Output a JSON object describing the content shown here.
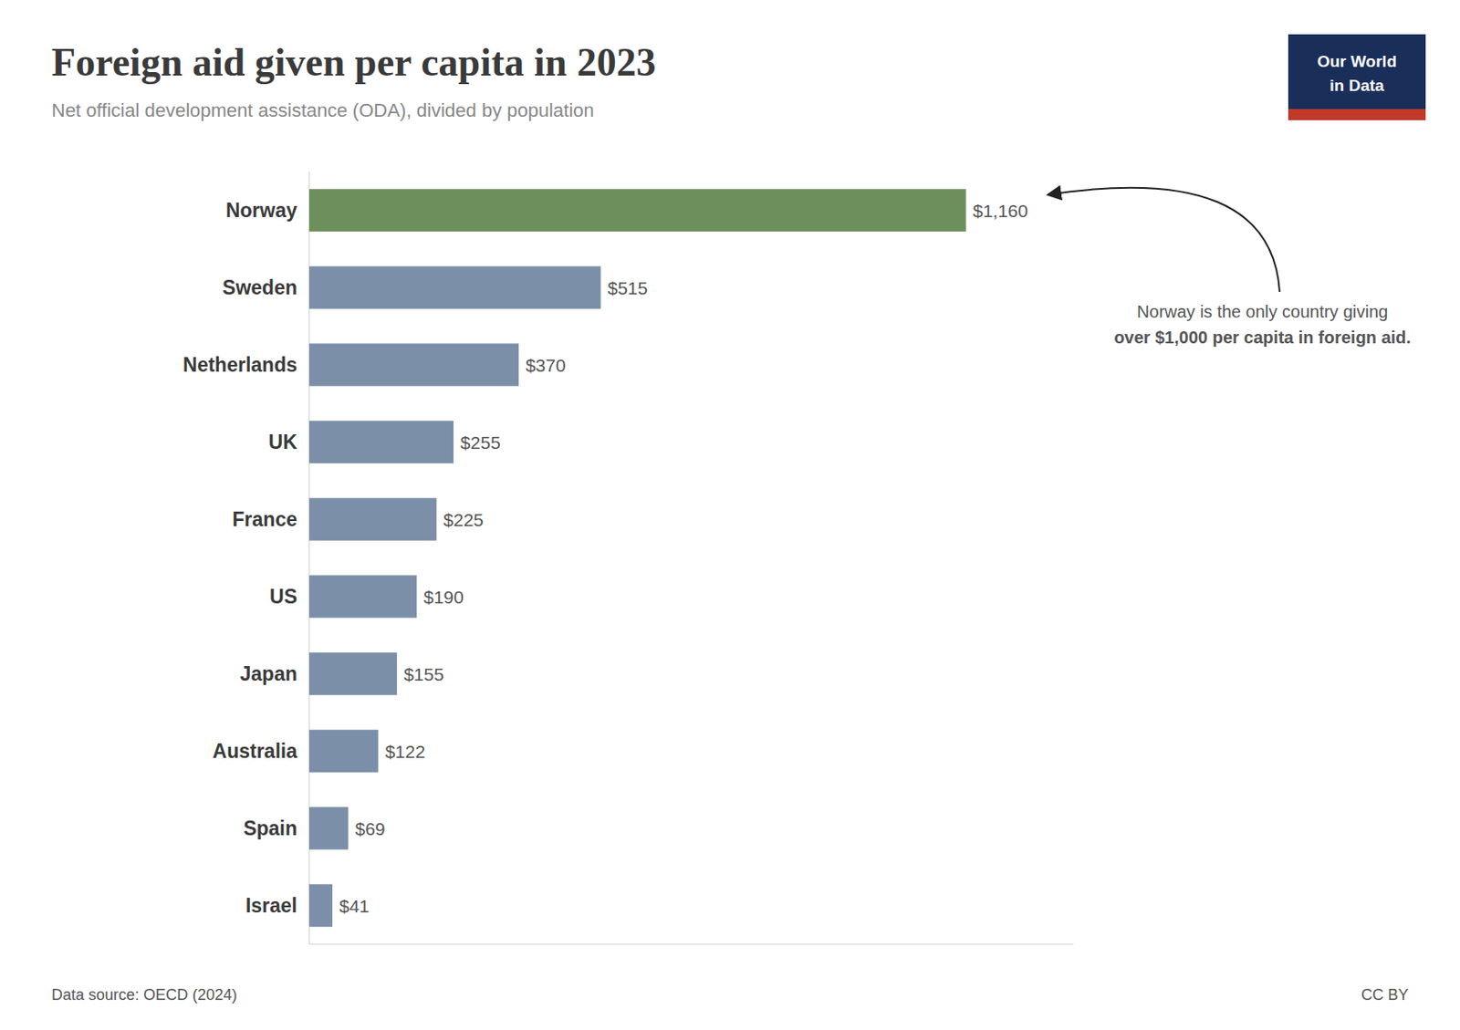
{
  "chart_data": {
    "type": "bar",
    "orientation": "horizontal",
    "title": "Foreign aid given per capita in 2023",
    "subtitle": "Net official development assistance (ODA), divided by population",
    "categories": [
      "Norway",
      "Sweden",
      "Netherlands",
      "UK",
      "France",
      "US",
      "Japan",
      "Australia",
      "Spain",
      "Israel"
    ],
    "values": [
      1160,
      515,
      370,
      255,
      225,
      190,
      155,
      122,
      69,
      41
    ],
    "value_labels": [
      "$1,160",
      "$515",
      "$370",
      "$255",
      "$225",
      "$190",
      "$155",
      "$122",
      "$69",
      "$41"
    ],
    "colors": [
      "#6d8f5c",
      "#7b8fa8",
      "#7b8fa8",
      "#7b8fa8",
      "#7b8fa8",
      "#7b8fa8",
      "#7b8fa8",
      "#7b8fa8",
      "#7b8fa8",
      "#7b8fa8"
    ],
    "xlim": [
      0,
      1350
    ],
    "data_labels": true,
    "tick_labels": "y",
    "grid": false,
    "annotations": [
      "Norway is the only country giving",
      "over $1,000 per capita in foreign aid."
    ],
    "source": "Data source: OECD (2024)",
    "credit": "CC BY",
    "logo": [
      "Our World",
      "in Data"
    ]
  }
}
